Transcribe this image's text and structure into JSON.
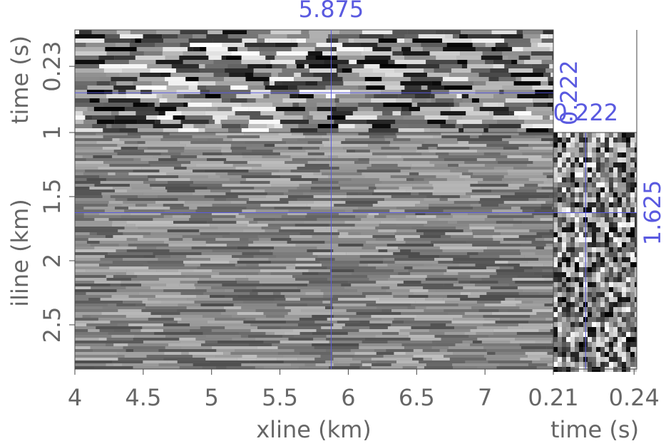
{
  "chart_data": {
    "type": "seismic-cube",
    "xline_label": "xline (km)",
    "iline_label": "iline (km)",
    "time_label_top": "time (s)",
    "time_label_side": "time (s)",
    "xlim": [
      4,
      7.5
    ],
    "xticks": [
      4,
      4.5,
      5,
      5.5,
      6,
      6.5,
      7
    ],
    "ylim": [
      1,
      2.845
    ],
    "yticks": [
      1,
      1.5,
      2,
      2.5
    ],
    "tlim": [
      0.21,
      0.241
    ],
    "tticks_top": [
      0.23
    ],
    "tticks_side": [
      0.21,
      0.24
    ],
    "crosshair": {
      "xline": 5.875,
      "iline": 1.625,
      "time": 0.222,
      "color": "#5a5ae0"
    }
  }
}
